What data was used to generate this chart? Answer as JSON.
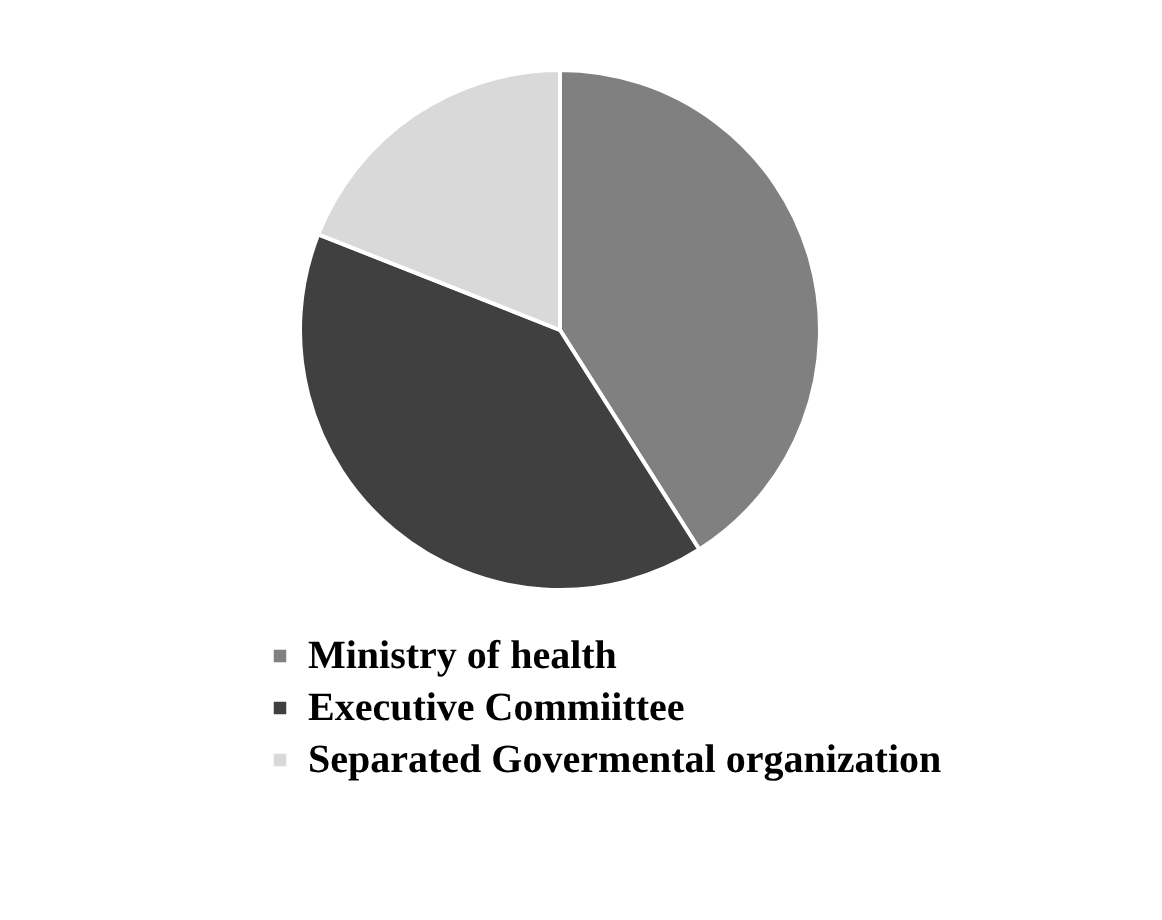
{
  "chart_data": {
    "type": "pie",
    "categories": [
      "Ministry of health",
      "Executive Commiittee",
      "Separated Govermental organization"
    ],
    "values": [
      41,
      40,
      19
    ],
    "colors": [
      "#808080",
      "#404040",
      "#d9d9d9"
    ],
    "legend": "bottom"
  }
}
